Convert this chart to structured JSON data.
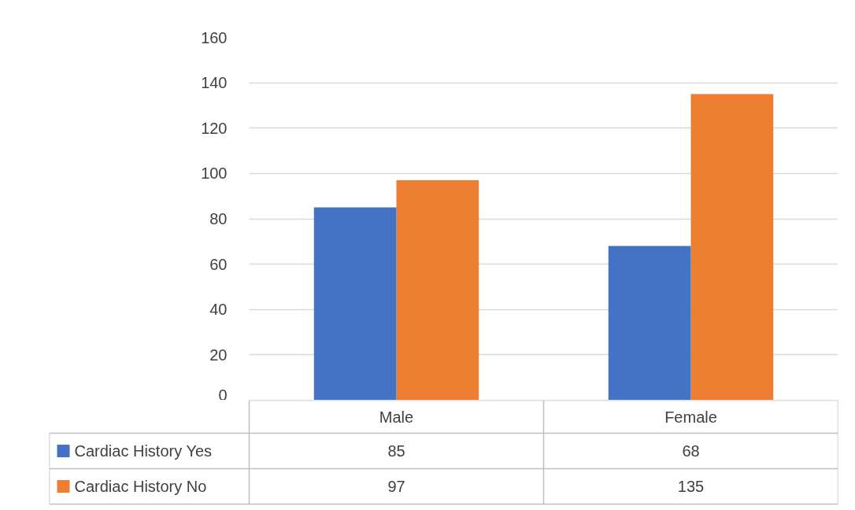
{
  "chart_data": {
    "type": "bar",
    "categories": [
      "Male",
      "Female"
    ],
    "series": [
      {
        "name": "Cardiac History Yes",
        "color": "#4472c4",
        "values": [
          85,
          68
        ]
      },
      {
        "name": "Cardiac History No",
        "color": "#ed7d31",
        "values": [
          97,
          135
        ]
      }
    ],
    "ylim": [
      0,
      160
    ],
    "yticks": [
      0,
      20,
      40,
      60,
      80,
      100,
      120,
      140,
      160
    ],
    "grid": "y",
    "legend": "bottom",
    "data_labels": true
  }
}
